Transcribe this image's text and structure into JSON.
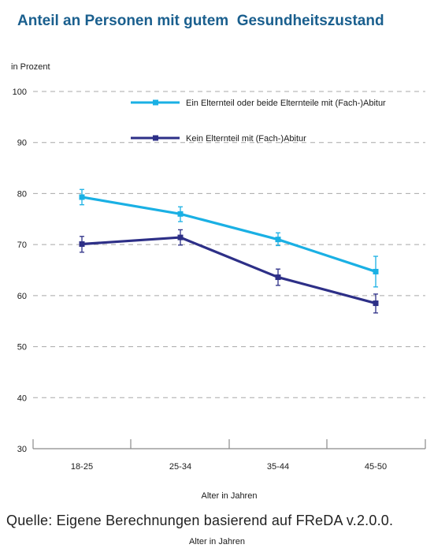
{
  "title": "Anteil an Personen mit gutem  Gesundheitszustand",
  "source": "Quelle: Eigene Berechnungen basierend auf FReDA v.2.0.0.",
  "footer_label": "Alter in Jahren",
  "chart_data": {
    "type": "line",
    "ylabel": "in Prozent",
    "xlabel": "Alter in Jahren",
    "ylim": [
      30,
      100
    ],
    "yticks": [
      30,
      40,
      50,
      60,
      70,
      80,
      90,
      100
    ],
    "categories": [
      "18-25",
      "25-34",
      "35-44",
      "45-50"
    ],
    "grid": true,
    "legend_position": "top-right",
    "series": [
      {
        "name": "Ein Elternteil oder beide Elternteile mit (Fach-)Abitur",
        "color": "#1ab0e4",
        "marker": "square",
        "values": [
          79.3,
          76.0,
          71.0,
          64.7
        ],
        "error_low": [
          77.8,
          74.5,
          69.8,
          61.7
        ],
        "error_high": [
          80.8,
          77.4,
          72.3,
          67.7
        ]
      },
      {
        "name": "Kein Elternteil mit (Fach-)Abitur",
        "color": "#2d2f87",
        "marker": "square",
        "values": [
          70.1,
          71.4,
          63.6,
          58.5
        ],
        "error_low": [
          68.5,
          69.9,
          62.0,
          56.6
        ],
        "error_high": [
          71.6,
          72.9,
          65.2,
          60.3
        ]
      }
    ]
  }
}
